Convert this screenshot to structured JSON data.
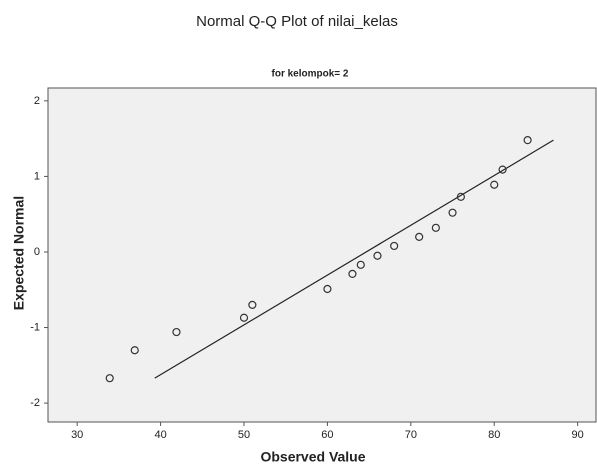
{
  "chart_data": {
    "type": "scatter",
    "title": "Normal Q-Q Plot of nilai_kelas",
    "subtitle": "for kelompok= 2",
    "x_label": "Observed Value",
    "y_label": "Expected Normal",
    "points": {
      "x": [
        33.9,
        36.9,
        41.9,
        50,
        51,
        60,
        63,
        64,
        66,
        68,
        71,
        73,
        75,
        76,
        80,
        81,
        84
      ],
      "y": [
        -1.67,
        -1.3,
        -1.06,
        -0.87,
        -0.7,
        -0.49,
        -0.29,
        -0.17,
        -0.05,
        0.08,
        0.2,
        0.32,
        0.52,
        0.73,
        0.89,
        1.09,
        1.48
      ],
      "color": "#333333"
    },
    "reference_line": {
      "x": [
        39.3,
        87.1
      ],
      "y": [
        -1.67,
        1.48
      ],
      "color": "#222222"
    },
    "xlim": [
      26.5,
      92.2
    ],
    "xticks": [
      30,
      40,
      50,
      60,
      70,
      80,
      90
    ],
    "ylim": [
      -2.25,
      2.17
    ],
    "yticks": [
      -2,
      -1,
      0,
      1,
      2
    ],
    "background": "#f0f0f0"
  }
}
